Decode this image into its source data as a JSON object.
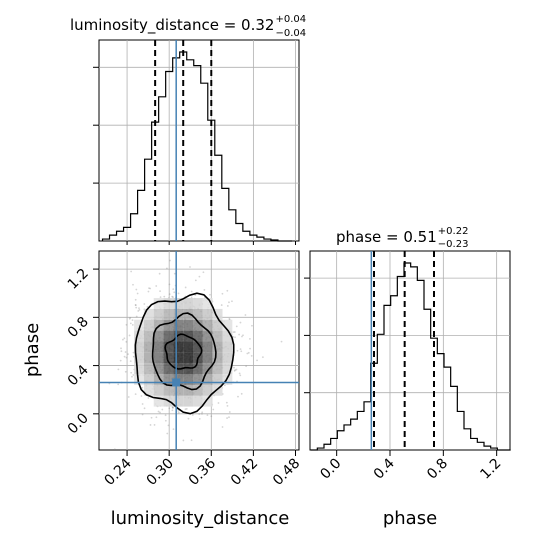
{
  "chart_data": [
    {
      "type": "histogram",
      "panel": "luminosity_distance marginal",
      "title": {
        "param": "luminosity_distance",
        "value": "0.32",
        "plus": "+0.04",
        "minus": "−0.04"
      },
      "x": [
        0.21,
        0.22,
        0.23,
        0.24,
        0.25,
        0.26,
        0.27,
        0.28,
        0.29,
        0.3,
        0.31,
        0.32,
        0.33,
        0.34,
        0.35,
        0.36,
        0.37,
        0.38,
        0.39,
        0.4,
        0.41,
        0.42,
        0.43,
        0.44,
        0.45,
        0.46,
        0.47
      ],
      "counts": [
        0.01,
        0.03,
        0.05,
        0.07,
        0.14,
        0.26,
        0.42,
        0.61,
        0.74,
        0.87,
        0.94,
        0.97,
        0.93,
        0.9,
        0.81,
        0.62,
        0.44,
        0.27,
        0.16,
        0.09,
        0.05,
        0.03,
        0.02,
        0.01,
        0.005,
        0.0,
        0.0
      ],
      "quantiles": [
        0.28,
        0.32,
        0.36
      ],
      "truth": 0.31,
      "xlim": [
        0.2,
        0.485
      ],
      "grid": true
    },
    {
      "type": "histogram",
      "panel": "phase marginal",
      "title": {
        "param": "phase",
        "value": "0.51",
        "plus": "+0.22",
        "minus": "−0.23"
      },
      "x": [
        -0.17,
        -0.12,
        -0.07,
        -0.02,
        0.03,
        0.08,
        0.13,
        0.18,
        0.23,
        0.28,
        0.33,
        0.38,
        0.43,
        0.48,
        0.53,
        0.58,
        0.63,
        0.68,
        0.73,
        0.78,
        0.83,
        0.88,
        0.93,
        0.98,
        1.03,
        1.08,
        1.13,
        1.18,
        1.23,
        1.28
      ],
      "counts": [
        0.0,
        0.01,
        0.03,
        0.06,
        0.1,
        0.13,
        0.16,
        0.2,
        0.25,
        0.45,
        0.6,
        0.75,
        0.8,
        0.9,
        0.97,
        0.95,
        0.88,
        0.73,
        0.58,
        0.5,
        0.43,
        0.33,
        0.2,
        0.11,
        0.06,
        0.04,
        0.02,
        0.01,
        0.0,
        0.0
      ],
      "quantiles": [
        0.28,
        0.51,
        0.73
      ],
      "truth": 0.26,
      "xlim": [
        -0.2,
        1.3
      ],
      "grid": true
    },
    {
      "type": "2d-density",
      "panel": "luminosity_distance vs phase",
      "center": {
        "x": 0.32,
        "y": 0.51
      },
      "contours": [
        {
          "level": "inner",
          "x_halfwidth": 0.025,
          "y_halfwidth": 0.14
        },
        {
          "level": "middle",
          "x_halfwidth": 0.045,
          "y_halfwidth": 0.3
        },
        {
          "level": "outer",
          "x_halfwidth": 0.07,
          "y_halfwidth": 0.47
        }
      ],
      "truth": {
        "x": 0.31,
        "y": 0.26
      },
      "xlim": [
        0.2,
        0.485
      ],
      "ylim": [
        -0.3,
        1.35
      ],
      "grid": true
    }
  ],
  "axes": {
    "x_label_left": "luminosity_distance",
    "x_label_right": "phase",
    "y_label_left": "phase",
    "x_ticks_left": [
      "0.24",
      "0.30",
      "0.36",
      "0.42",
      "0.48"
    ],
    "x_ticks_left_values": [
      0.24,
      0.3,
      0.36,
      0.42,
      0.48
    ],
    "y_ticks_left": [
      "0.0",
      "0.4",
      "0.8",
      "1.2"
    ],
    "y_ticks_left_values": [
      0.0,
      0.4,
      0.8,
      1.2
    ],
    "x_ticks_right": [
      "0.0",
      "0.4",
      "0.8",
      "1.2"
    ],
    "x_ticks_right_values": [
      0.0,
      0.4,
      0.8,
      1.2
    ]
  },
  "colors": {
    "hist": "#000000",
    "quantile": "#000000",
    "truth": "#4682b4",
    "grid": "#b0b0b0",
    "scatter": "#888888"
  }
}
